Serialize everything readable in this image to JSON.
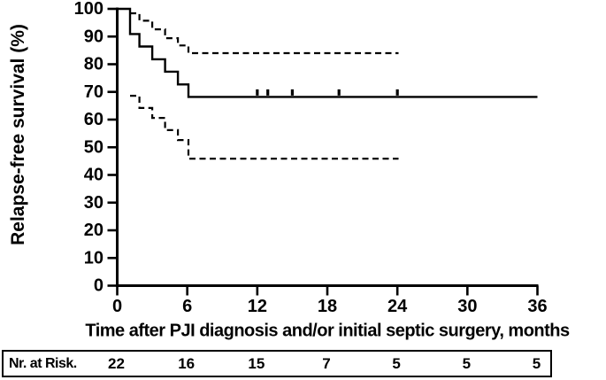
{
  "colors": {
    "foreground": "#000000",
    "background": "#ffffff"
  },
  "chart_data": {
    "type": "line",
    "subtype": "kaplan-meier-step",
    "title": "",
    "xlabel": "Time after PJI diagnosis and/or initial septic surgery, months",
    "ylabel": "Relapse-free survival  (%)",
    "xlim": [
      0,
      36
    ],
    "ylim": [
      0,
      100
    ],
    "xticks": [
      0,
      6,
      12,
      18,
      24,
      30,
      36
    ],
    "yticks": [
      0,
      10,
      20,
      30,
      40,
      50,
      60,
      70,
      80,
      90,
      100
    ],
    "grid": false,
    "legend": "none",
    "series": [
      {
        "name": "relapse-free survival",
        "style": "solid",
        "points": [
          [
            0,
            100
          ],
          [
            1.1,
            100
          ],
          [
            1.1,
            90.9
          ],
          [
            1.9,
            90.9
          ],
          [
            1.9,
            86.4
          ],
          [
            3,
            86.4
          ],
          [
            3,
            81.8
          ],
          [
            4.1,
            81.8
          ],
          [
            4.1,
            77.3
          ],
          [
            5.2,
            77.3
          ],
          [
            5.2,
            72.7
          ],
          [
            6.1,
            72.7
          ],
          [
            6.1,
            68.2
          ],
          [
            36,
            68.2
          ]
        ]
      },
      {
        "name": "95% CI upper bound",
        "style": "dashed",
        "points": [
          [
            1.1,
            98.4
          ],
          [
            1.9,
            98.4
          ],
          [
            1.9,
            95.7
          ],
          [
            3,
            95.7
          ],
          [
            3,
            92.6
          ],
          [
            4.1,
            92.6
          ],
          [
            4.1,
            89.4
          ],
          [
            5.2,
            89.4
          ],
          [
            5.2,
            86.8
          ],
          [
            6.1,
            86.8
          ],
          [
            6.1,
            84
          ],
          [
            24.1,
            84
          ]
        ]
      },
      {
        "name": "95% CI lower bound",
        "style": "dashed",
        "points": [
          [
            1.1,
            68.6
          ],
          [
            1.9,
            68.6
          ],
          [
            1.9,
            64.2
          ],
          [
            3,
            64.2
          ],
          [
            3,
            60.6
          ],
          [
            4.1,
            60.6
          ],
          [
            4.1,
            56.2
          ],
          [
            5.2,
            56.2
          ],
          [
            5.2,
            52.6
          ],
          [
            6.1,
            52.6
          ],
          [
            6.1,
            45.9
          ],
          [
            24.1,
            45.9
          ]
        ]
      }
    ],
    "censor_marks": {
      "series": "relapse-free survival",
      "level": 68.2,
      "months": [
        12,
        12.9,
        15,
        19,
        24
      ]
    },
    "at_risk": {
      "label": "Nr. at Risk.",
      "months": [
        0,
        6,
        12,
        18,
        24,
        30,
        36
      ],
      "values": [
        22,
        16,
        15,
        7,
        5,
        5,
        5
      ]
    }
  }
}
